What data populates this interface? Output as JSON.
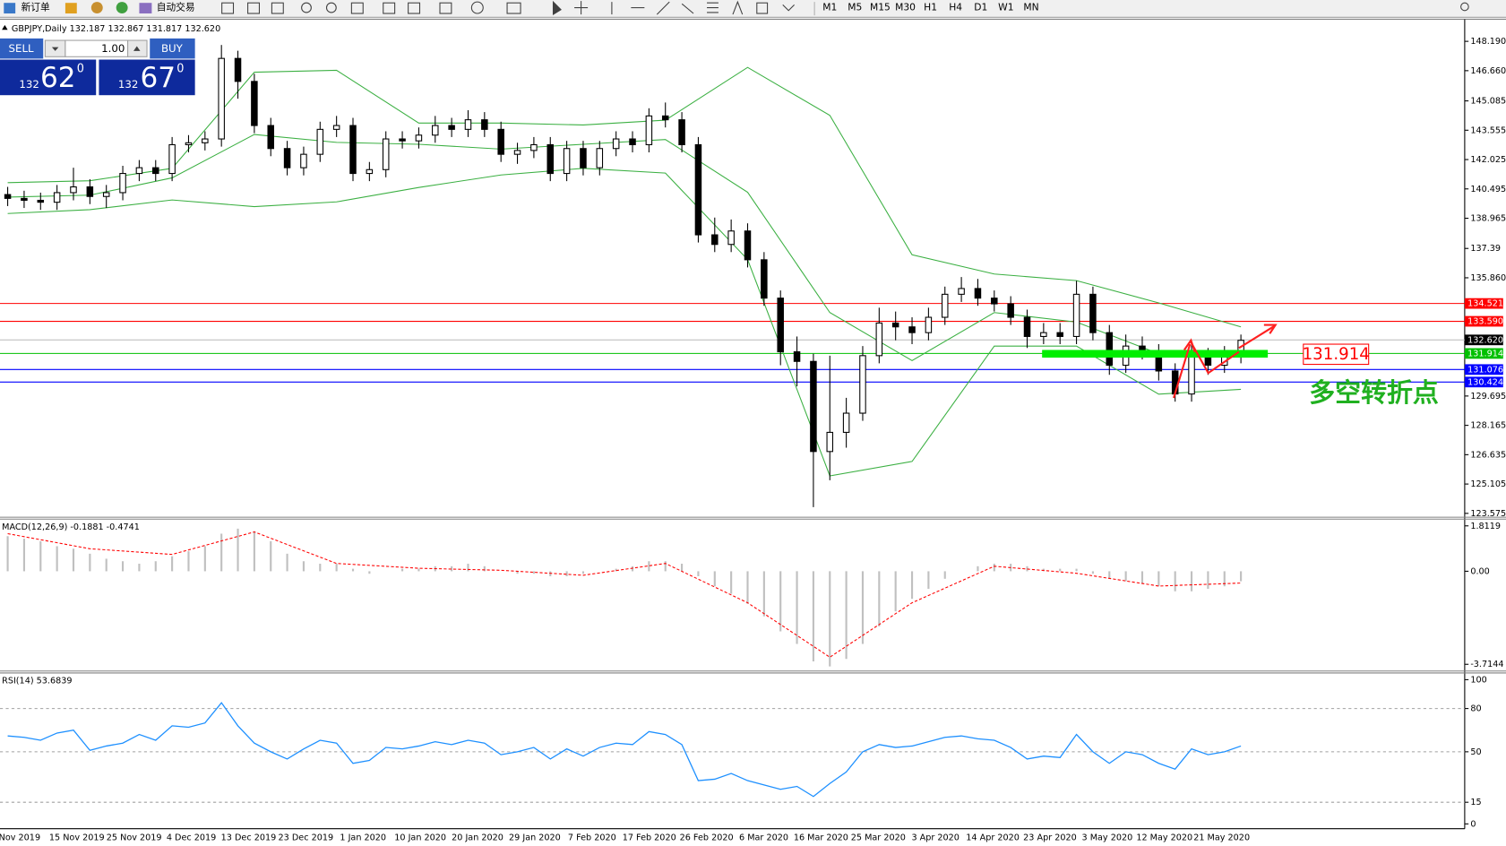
{
  "toolbar": {
    "new_order": "新订单",
    "auto_trading": "自动交易",
    "timeframes": [
      "M1",
      "M5",
      "M15",
      "M30",
      "H1",
      "H4",
      "D1",
      "W1",
      "MN"
    ]
  },
  "trade_panel": {
    "sell": "SELL",
    "lots": "1.00",
    "buy": "BUY",
    "sell_price": {
      "big": "132",
      "main": "62",
      "pip": "0"
    },
    "buy_price": {
      "big": "132",
      "main": "67",
      "pip": "0"
    }
  },
  "chart_data": [
    {
      "type": "candlestick",
      "title": "GBPJPY,Daily  132.187 132.867 131.817 132.620",
      "x_labels": [
        "Nov 2019",
        "15 Nov 2019",
        "25 Nov 2019",
        "4 Dec 2019",
        "13 Dec 2019",
        "23 Dec 2019",
        "1 Jan 2020",
        "10 Jan 2020",
        "20 Jan 2020",
        "29 Jan 2020",
        "7 Feb 2020",
        "17 Feb 2020",
        "26 Feb 2020",
        "6 Mar 2020",
        "16 Mar 2020",
        "25 Mar 2020",
        "3 Apr 2020",
        "14 Apr 2020",
        "23 Apr 2020",
        "3 May 2020",
        "12 May 2020",
        "21 May 2020"
      ],
      "up_color": "#ffffff",
      "down_color": "#000000",
      "ohlc": [
        [
          140.2,
          140.6,
          139.6,
          140.0
        ],
        [
          140.0,
          140.4,
          139.5,
          139.9
        ],
        [
          139.9,
          140.3,
          139.4,
          139.8
        ],
        [
          139.8,
          140.7,
          139.4,
          140.3
        ],
        [
          140.3,
          141.6,
          139.9,
          140.6
        ],
        [
          140.6,
          141.0,
          139.7,
          140.1
        ],
        [
          140.1,
          140.7,
          139.5,
          140.3
        ],
        [
          140.3,
          141.7,
          139.9,
          141.3
        ],
        [
          141.3,
          142.0,
          140.9,
          141.6
        ],
        [
          141.6,
          142.0,
          140.9,
          141.3
        ],
        [
          141.3,
          143.2,
          140.9,
          142.8
        ],
        [
          142.8,
          143.3,
          142.4,
          142.9
        ],
        [
          142.9,
          143.5,
          142.5,
          143.1
        ],
        [
          143.1,
          148.0,
          142.7,
          147.3
        ],
        [
          147.3,
          147.7,
          145.2,
          146.1
        ],
        [
          146.1,
          146.5,
          143.4,
          143.8
        ],
        [
          143.8,
          144.2,
          142.2,
          142.6
        ],
        [
          142.6,
          143.0,
          141.2,
          141.6
        ],
        [
          141.6,
          142.7,
          141.2,
          142.3
        ],
        [
          142.3,
          144.0,
          141.9,
          143.6
        ],
        [
          143.6,
          144.3,
          143.2,
          143.8
        ],
        [
          143.8,
          144.2,
          140.9,
          141.3
        ],
        [
          141.3,
          141.9,
          140.9,
          141.5
        ],
        [
          141.5,
          143.5,
          141.1,
          143.1
        ],
        [
          143.1,
          143.5,
          142.6,
          143.0
        ],
        [
          143.0,
          143.7,
          142.6,
          143.3
        ],
        [
          143.3,
          144.3,
          142.9,
          143.8
        ],
        [
          143.8,
          144.2,
          143.2,
          143.6
        ],
        [
          143.6,
          144.6,
          143.2,
          144.1
        ],
        [
          144.1,
          144.5,
          143.2,
          143.6
        ],
        [
          143.6,
          144.0,
          141.9,
          142.3
        ],
        [
          142.3,
          142.9,
          141.8,
          142.5
        ],
        [
          142.5,
          143.2,
          142.1,
          142.8
        ],
        [
          142.8,
          143.2,
          140.9,
          141.3
        ],
        [
          141.3,
          143.0,
          140.9,
          142.6
        ],
        [
          142.6,
          143.0,
          141.2,
          141.6
        ],
        [
          141.6,
          143.0,
          141.2,
          142.6
        ],
        [
          142.6,
          143.5,
          142.2,
          143.1
        ],
        [
          143.1,
          143.5,
          142.4,
          142.8
        ],
        [
          142.8,
          144.7,
          142.4,
          144.3
        ],
        [
          144.3,
          145.0,
          143.7,
          144.1
        ],
        [
          144.1,
          144.5,
          142.4,
          142.8
        ],
        [
          142.8,
          143.2,
          137.7,
          138.1
        ],
        [
          138.1,
          139.0,
          137.2,
          137.6
        ],
        [
          137.6,
          138.9,
          137.2,
          138.3
        ],
        [
          138.3,
          138.7,
          136.4,
          136.8
        ],
        [
          136.8,
          137.2,
          134.4,
          134.8
        ],
        [
          134.8,
          135.2,
          131.3,
          132.0
        ],
        [
          132.0,
          132.8,
          130.2,
          131.5
        ],
        [
          131.5,
          131.9,
          123.9,
          126.8
        ],
        [
          126.8,
          131.8,
          125.3,
          127.8
        ],
        [
          127.8,
          129.6,
          127.0,
          128.8
        ],
        [
          128.8,
          132.3,
          128.4,
          131.8
        ],
        [
          131.8,
          134.3,
          131.4,
          133.5
        ],
        [
          133.5,
          134.1,
          132.6,
          133.3
        ],
        [
          133.3,
          133.8,
          132.4,
          133.0
        ],
        [
          133.0,
          134.3,
          132.6,
          133.8
        ],
        [
          133.8,
          135.4,
          133.4,
          135.0
        ],
        [
          135.0,
          135.9,
          134.6,
          135.3
        ],
        [
          135.3,
          135.8,
          134.4,
          134.8
        ],
        [
          134.8,
          135.2,
          134.1,
          134.5
        ],
        [
          134.5,
          134.9,
          133.4,
          133.8
        ],
        [
          133.8,
          134.2,
          132.2,
          132.8
        ],
        [
          132.8,
          133.5,
          132.4,
          133.0
        ],
        [
          133.0,
          133.5,
          132.4,
          132.8
        ],
        [
          132.8,
          135.7,
          132.4,
          135.0
        ],
        [
          135.0,
          135.4,
          132.6,
          133.0
        ],
        [
          133.0,
          133.4,
          130.8,
          131.3
        ],
        [
          131.3,
          132.9,
          130.9,
          132.3
        ],
        [
          132.3,
          132.8,
          131.6,
          132.0
        ],
        [
          132.0,
          132.4,
          130.5,
          131.0
        ],
        [
          131.0,
          131.4,
          129.4,
          129.8
        ],
        [
          129.8,
          132.5,
          129.4,
          131.8
        ],
        [
          131.8,
          132.2,
          130.8,
          131.3
        ],
        [
          131.3,
          132.3,
          130.9,
          131.8
        ],
        [
          131.8,
          132.9,
          131.4,
          132.6
        ]
      ],
      "bands": {
        "color": "#3cb043",
        "x": [
          0,
          5,
          10,
          15,
          20,
          25,
          30,
          35,
          40,
          45,
          50,
          55,
          60,
          65,
          70,
          75
        ],
        "upper": [
          140.82,
          140.92,
          141.57,
          146.58,
          146.68,
          143.93,
          143.93,
          143.83,
          144.08,
          146.83,
          144.33,
          137.06,
          136.06,
          135.71,
          134.55,
          133.3
        ],
        "middle": [
          140.07,
          140.17,
          141.07,
          143.33,
          142.92,
          142.82,
          142.57,
          142.82,
          143.07,
          140.32,
          134.05,
          131.54,
          134.05,
          133.55,
          131.9,
          131.8
        ],
        "lower": [
          139.21,
          139.41,
          139.92,
          139.57,
          139.82,
          140.57,
          141.22,
          141.57,
          141.32,
          136.81,
          125.53,
          126.28,
          132.3,
          132.3,
          129.79,
          130.04
        ]
      },
      "levels": [
        {
          "value": 134.521,
          "label": "134.521",
          "line_color": "#ff0000",
          "label_color": "#ff0000"
        },
        {
          "value": 133.59,
          "label": "133.590",
          "line_color": "#ff0000",
          "label_color": "#ff0000"
        },
        {
          "value": 132.62,
          "label": "132.620",
          "line_color": "#c0c0c0",
          "label_color": "#000000"
        },
        {
          "value": 131.914,
          "label": "131.914",
          "line_color": "#00c000",
          "label_color": "#00c000"
        },
        {
          "value": 131.076,
          "label": "131.076",
          "line_color": "#0000ff",
          "label_color": "#0000ff"
        },
        {
          "value": 130.424,
          "label": "130.424",
          "line_color": "#0000ff",
          "label_color": "#0000ff"
        }
      ],
      "ylim": [
        123.575,
        148.19
      ],
      "yticks": [
        {
          "value": 148.19,
          "label": "148.190"
        },
        {
          "value": 146.66,
          "label": "146.660"
        },
        145.085,
        143.555,
        142.025,
        140.495,
        138.965,
        137.39,
        {
          "value": 135.86,
          "label": "135.860"
        },
        129.695,
        128.165,
        126.635,
        125.105,
        123.575
      ],
      "annotations": {
        "price_label": "131.914",
        "note": "多空转折点"
      }
    },
    {
      "type": "macd",
      "title": "MACD(12,26,9) -0.1881 -0.4741",
      "histogram_color": "#c0c0c0",
      "histogram": [
        1.4,
        1.3,
        1.2,
        1.0,
        0.9,
        0.7,
        0.5,
        0.4,
        0.3,
        0.4,
        0.6,
        0.8,
        1.0,
        1.5,
        1.7,
        1.6,
        1.2,
        0.7,
        0.4,
        0.3,
        0.3,
        0.1,
        -0.1,
        0.0,
        0.1,
        0.1,
        0.2,
        0.2,
        0.3,
        0.2,
        0.0,
        -0.1,
        -0.1,
        -0.2,
        -0.2,
        -0.1,
        0.0,
        0.1,
        0.2,
        0.4,
        0.4,
        0.3,
        -0.2,
        -0.6,
        -0.9,
        -1.3,
        -1.8,
        -2.4,
        -2.9,
        -3.6,
        -3.8,
        -3.5,
        -2.9,
        -2.2,
        -1.6,
        -1.1,
        -0.7,
        -0.3,
        0.0,
        0.2,
        0.3,
        0.3,
        0.2,
        0.1,
        0.1,
        0.1,
        -0.1,
        -0.3,
        -0.4,
        -0.5,
        -0.6,
        -0.8,
        -0.8,
        -0.7,
        -0.6,
        -0.4
      ],
      "signal": {
        "color": "#ff0000",
        "x": [
          0,
          5,
          10,
          15,
          20,
          25,
          30,
          35,
          40,
          45,
          50,
          55,
          60,
          65,
          70,
          75
        ],
        "values": [
          1.5,
          0.9,
          0.67,
          1.57,
          0.31,
          0.12,
          0.04,
          -0.16,
          0.31,
          -1.26,
          -3.43,
          -1.26,
          0.2,
          -0.08,
          -0.59,
          -0.47
        ]
      },
      "ylim": [
        -3.945,
        2.042
      ],
      "yticks": [
        1.8119,
        {
          "value": 0,
          "label": "0.00"
        },
        -3.7144
      ]
    },
    {
      "type": "rsi",
      "title": "RSI(14) 53.6839",
      "color": "#1e90ff",
      "values": [
        61,
        60,
        58,
        63,
        65,
        51,
        54,
        56,
        62,
        58,
        68,
        67,
        70,
        84,
        68,
        56,
        50,
        45,
        52,
        58,
        56,
        42,
        44,
        53,
        52,
        54,
        57,
        55,
        58,
        56,
        48,
        50,
        53,
        45,
        52,
        47,
        53,
        56,
        55,
        64,
        62,
        55,
        30,
        31,
        35,
        30,
        27,
        24,
        26,
        19,
        28,
        36,
        50,
        55,
        53,
        54,
        57,
        60,
        61,
        59,
        58,
        53,
        45,
        47,
        46,
        62,
        50,
        42,
        50,
        48,
        42,
        38,
        52,
        48,
        50,
        54
      ],
      "ylim": [
        0,
        100
      ],
      "yticks": [
        100,
        80,
        50,
        15,
        0
      ]
    }
  ]
}
